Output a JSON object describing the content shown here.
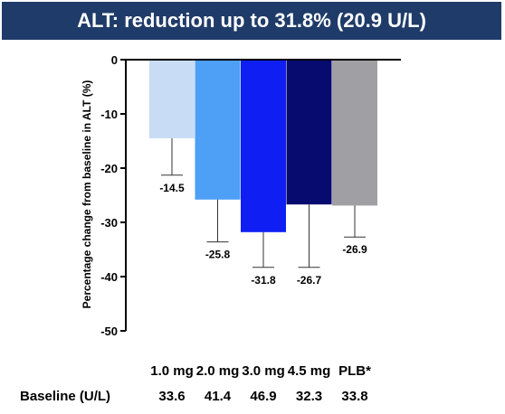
{
  "title": "ALT: reduction up to 31.8% (20.9 U/L)",
  "colors": {
    "title_bg": "#1f3b69",
    "title_text": "#ffffff",
    "bars": [
      "#c9dcf6",
      "#4e9ff6",
      "#0f1ff3",
      "#070a6e",
      "#a0a0a4"
    ]
  },
  "chart_data": {
    "type": "bar",
    "categories": [
      "1.0 mg",
      "2.0 mg",
      "3.0 mg",
      "4.5 mg",
      "PLB*"
    ],
    "values": [
      -14.5,
      -25.8,
      -31.8,
      -26.7,
      -26.9
    ],
    "error_bar_lower": [
      -21.3,
      -33.6,
      -38.3,
      -38.3,
      -32.7
    ],
    "data_labels": [
      "-14.5",
      "-25.8",
      "-31.8",
      "-26.7",
      "-26.9"
    ],
    "ylabel": "Percentage change from baseline in ALT (%)",
    "xlabel": "",
    "ylim": [
      -50,
      0
    ],
    "yticks": [
      0,
      -10,
      -20,
      -30,
      -40,
      -50
    ],
    "grid": false
  },
  "baseline": {
    "label": "Baseline (U/L)",
    "values": [
      "33.6",
      "41.4",
      "46.9",
      "32.3",
      "33.8"
    ]
  }
}
